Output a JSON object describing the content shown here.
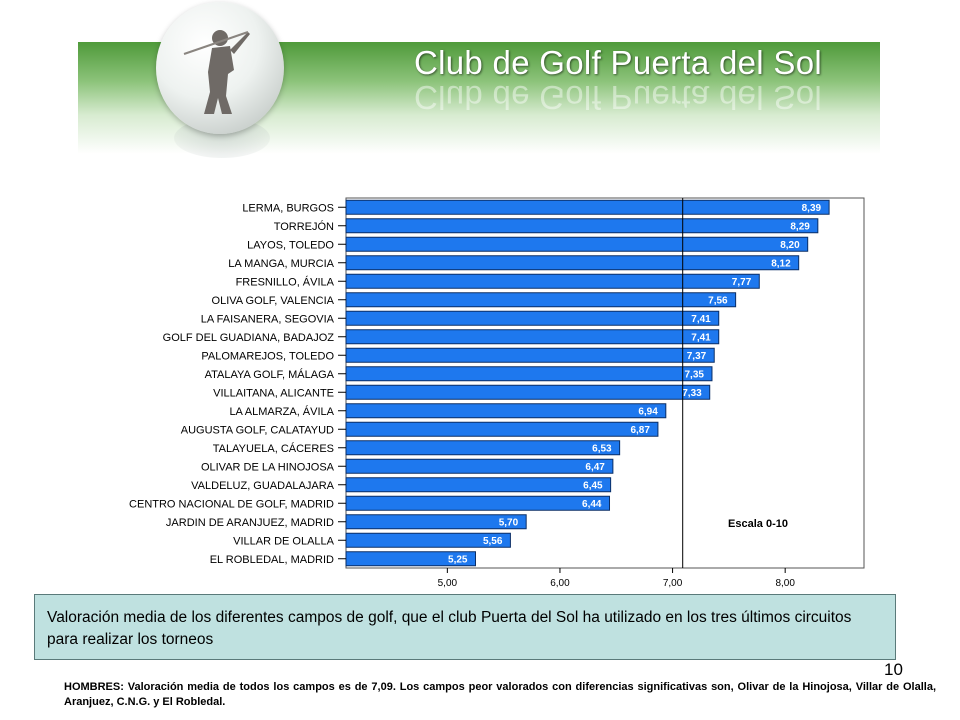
{
  "header": {
    "title": "Club de Golf Puerta del Sol"
  },
  "chart_data": {
    "type": "bar",
    "orientation": "horizontal",
    "categories": [
      "LERMA, BURGOS",
      "TORREJÓN",
      "LAYOS, TOLEDO",
      "LA MANGA, MURCIA",
      "FRESNILLO, ÁVILA",
      "OLIVA GOLF, VALENCIA",
      "LA FAISANERA, SEGOVIA",
      "GOLF DEL GUADIANA, BADAJOZ",
      "PALOMAREJOS, TOLEDO",
      "ATALAYA GOLF, MÁLAGA",
      "VILLAITANA, ALICANTE",
      "LA ALMARZA, ÁVILA",
      "AUGUSTA GOLF, CALATAYUD",
      "TALAYUELA, CÁCERES",
      "OLIVAR DE LA HINOJOSA",
      "VALDELUZ, GUADALAJARA",
      "CENTRO NACIONAL DE GOLF, MADRID",
      "JARDIN DE ARANJUEZ, MADRID",
      "VILLAR DE OLALLA",
      "EL ROBLEDAL, MADRID"
    ],
    "values": [
      8.39,
      8.29,
      8.2,
      8.12,
      7.77,
      7.56,
      7.41,
      7.41,
      7.37,
      7.35,
      7.33,
      6.94,
      6.87,
      6.53,
      6.47,
      6.45,
      6.44,
      5.7,
      5.56,
      5.25
    ],
    "value_labels": [
      "8,39",
      "8,29",
      "8,20",
      "8,12",
      "7,77",
      "7,56",
      "7,41",
      "7,41",
      "7,37",
      "7,35",
      "7,33",
      "6,94",
      "6,87",
      "6,53",
      "6,47",
      "6,45",
      "6,44",
      "5,70",
      "5,56",
      "5,25"
    ],
    "xticks": [
      5,
      6,
      7,
      8
    ],
    "xtick_labels": [
      "5,00",
      "6,00",
      "7,00",
      "8,00"
    ],
    "xlim": [
      4.1,
      8.7
    ],
    "reference_line": 7.09,
    "annotation": "Escala 0-10",
    "bar_color": "#1e78ee",
    "grid": false
  },
  "caption": "Valoración media de los diferentes campos de golf, que el club Puerta del Sol ha utilizado en los tres últimos circuitos para realizar los torneos",
  "page_number": "10",
  "footnote": "HOMBRES: Valoración media de todos los campos es de 7,09. Los campos peor valorados con diferencias significativas son, Olivar de la Hinojosa, Villar de Olalla, Aranjuez, C.N.G. y El Robledal.",
  "colors": {
    "caption_bg": "#bfe1e0",
    "header_green": "#4f9a3a"
  }
}
